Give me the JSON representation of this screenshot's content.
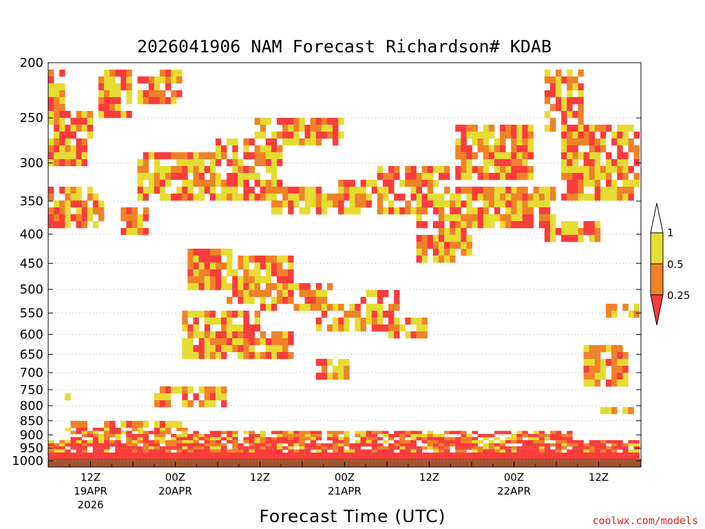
{
  "chart_data": {
    "type": "heatmap",
    "title": "2026041906 NAM Forecast Richardson# KDAB",
    "xlabel": "Forecast Time (UTC)",
    "ylabel": "",
    "credit": "coolwx.com/models",
    "forecast_hours": [
      0,
      84
    ],
    "y_scale": "pressure (hPa), reversed",
    "ylim": [
      1025,
      200
    ],
    "y_ticks": [
      "200",
      "250",
      "300",
      "350",
      "400",
      "450",
      "500",
      "550",
      "600",
      "650",
      "700",
      "750",
      "800",
      "850",
      "900",
      "950",
      "1000"
    ],
    "y_tick_values": [
      200,
      250,
      300,
      350,
      400,
      450,
      500,
      550,
      600,
      650,
      700,
      750,
      800,
      850,
      900,
      950,
      1000
    ],
    "x_ticks": [
      {
        "hour": 6,
        "time": "12Z",
        "date": "19APR",
        "year": "2026"
      },
      {
        "hour": 18,
        "time": "00Z",
        "date": "20APR",
        "year": ""
      },
      {
        "hour": 30,
        "time": "12Z",
        "date": "",
        "year": ""
      },
      {
        "hour": 42,
        "time": "00Z",
        "date": "21APR",
        "year": ""
      },
      {
        "hour": 54,
        "time": "12Z",
        "date": "",
        "year": ""
      },
      {
        "hour": 66,
        "time": "00Z",
        "date": "22APR",
        "year": ""
      },
      {
        "hour": 78,
        "time": "12Z",
        "date": "",
        "year": ""
      }
    ],
    "legend": {
      "labels": [
        "1",
        "0.5",
        "0.25"
      ],
      "bins": [
        {
          "range": "0.5-1",
          "color": "#e6dc32"
        },
        {
          "range": "0.25-0.5",
          "color": "#f08228"
        },
        {
          "range": "<0.25",
          "color": "#fa3c3c"
        }
      ]
    },
    "colors": {
      "yellow": "#e6dc32",
      "orange": "#f08228",
      "red": "#fa3c3c",
      "ground": "#a0522d",
      "grid": "#aaaaaa"
    },
    "regions": [
      {
        "h": [
          0,
          84
        ],
        "p": [
          960,
          1025
        ],
        "v": "red"
      },
      {
        "h": [
          0,
          84
        ],
        "p": [
          910,
          960
        ],
        "v": "mixed"
      },
      {
        "h": [
          3,
          74
        ],
        "p": [
          875,
          910
        ],
        "v": "mixed"
      },
      {
        "h": [
          2,
          20
        ],
        "p": [
          835,
          875
        ],
        "v": "mixed"
      },
      {
        "h": [
          77,
          83
        ],
        "p": [
          790,
          820
        ],
        "v": "mixed"
      },
      {
        "h": [
          2,
          5
        ],
        "p": [
          745,
          765
        ],
        "v": "mixed"
      },
      {
        "h": [
          15,
          25
        ],
        "p": [
          740,
          790
        ],
        "v": "mixed"
      },
      {
        "h": [
          0,
          2
        ],
        "p": [
          200,
          290
        ],
        "v": "mixed"
      },
      {
        "h": [
          0,
          6
        ],
        "p": [
          240,
          300
        ],
        "v": "mixed"
      },
      {
        "h": [
          7,
          12
        ],
        "p": [
          200,
          245
        ],
        "v": "mixed"
      },
      {
        "h": [
          13,
          19
        ],
        "p": [
          200,
          235
        ],
        "v": "mixed"
      },
      {
        "h": [
          0,
          8
        ],
        "p": [
          330,
          380
        ],
        "v": "mixed"
      },
      {
        "h": [
          10,
          14
        ],
        "p": [
          355,
          395
        ],
        "v": "mixed"
      },
      {
        "h": [
          13,
          24
        ],
        "p": [
          280,
          345
        ],
        "v": "mixed"
      },
      {
        "h": [
          24,
          33
        ],
        "p": [
          270,
          340
        ],
        "v": "mixed"
      },
      {
        "h": [
          29,
          42
        ],
        "p": [
          248,
          275
        ],
        "v": "mixed"
      },
      {
        "h": [
          32,
          44
        ],
        "p": [
          330,
          360
        ],
        "v": "mixed"
      },
      {
        "h": [
          41,
          49
        ],
        "p": [
          320,
          355
        ],
        "v": "mixed"
      },
      {
        "h": [
          47,
          57
        ],
        "p": [
          300,
          360
        ],
        "v": "mixed"
      },
      {
        "h": [
          52,
          60
        ],
        "p": [
          330,
          440
        ],
        "v": "mixed"
      },
      {
        "h": [
          58,
          69
        ],
        "p": [
          250,
          320
        ],
        "v": "mixed"
      },
      {
        "h": [
          60,
          72
        ],
        "p": [
          330,
          380
        ],
        "v": "mixed"
      },
      {
        "h": [
          70,
          78
        ],
        "p": [
          370,
          410
        ],
        "v": "mixed"
      },
      {
        "h": [
          73,
          84
        ],
        "p": [
          250,
          345
        ],
        "v": "mixed"
      },
      {
        "h": [
          70,
          76
        ],
        "p": [
          200,
          260
        ],
        "v": "mixed"
      },
      {
        "h": [
          20,
          26
        ],
        "p": [
          420,
          500
        ],
        "v": "mixed"
      },
      {
        "h": [
          25,
          35
        ],
        "p": [
          430,
          520
        ],
        "v": "mixed"
      },
      {
        "h": [
          30,
          40
        ],
        "p": [
          480,
          530
        ],
        "v": "mixed"
      },
      {
        "h": [
          19,
          30
        ],
        "p": [
          530,
          650
        ],
        "v": "mixed"
      },
      {
        "h": [
          26,
          35
        ],
        "p": [
          580,
          650
        ],
        "v": "mixed"
      },
      {
        "h": [
          38,
          44
        ],
        "p": [
          520,
          580
        ],
        "v": "mixed"
      },
      {
        "h": [
          44,
          50
        ],
        "p": [
          490,
          580
        ],
        "v": "mixed"
      },
      {
        "h": [
          48,
          54
        ],
        "p": [
          560,
          600
        ],
        "v": "mixed"
      },
      {
        "h": [
          38,
          43
        ],
        "p": [
          650,
          705
        ],
        "v": "mixed"
      },
      {
        "h": [
          79,
          84
        ],
        "p": [
          520,
          560
        ],
        "v": "mixed"
      },
      {
        "h": [
          76,
          82
        ],
        "p": [
          620,
          740
        ],
        "v": "mixed"
      }
    ]
  }
}
